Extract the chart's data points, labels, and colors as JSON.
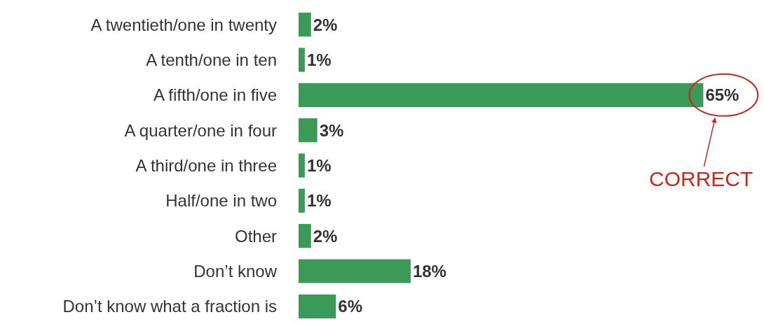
{
  "chart_data": {
    "type": "bar",
    "orientation": "horizontal",
    "categories": [
      "A twentieth/one in twenty",
      "A tenth/one in ten",
      "A fifth/one in five",
      "A quarter/one in four",
      "A third/one in three",
      "Half/one in two",
      "Other",
      "Don’t know",
      "Don’t know what a fraction is"
    ],
    "values": [
      2,
      1,
      65,
      3,
      1,
      1,
      2,
      18,
      6
    ],
    "value_labels": [
      "2%",
      "1%",
      "65%",
      "3%",
      "1%",
      "1%",
      "2%",
      "18%",
      "6%"
    ],
    "color": "#3b9a57",
    "tick_labels": "y",
    "annotations": [
      {
        "text": "CORRECT",
        "x": 65,
        "y": "A fifth/one in five"
      }
    ]
  }
}
